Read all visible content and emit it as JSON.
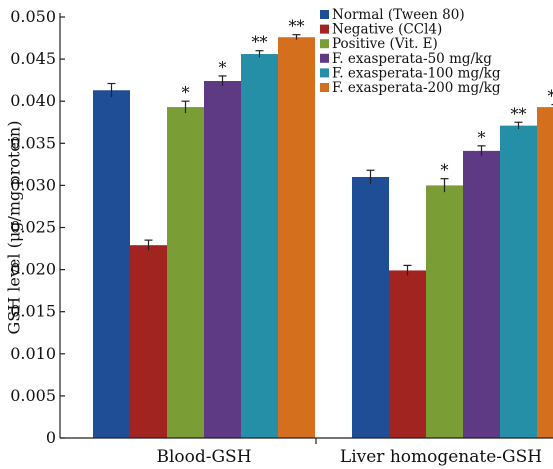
{
  "chart_data": {
    "type": "bar",
    "ylabel": "GSH level (μg/mg protein)",
    "ylim": [
      0,
      0.05
    ],
    "yticks": [
      "0",
      "0.005",
      "0.010",
      "0.015",
      "0.020",
      "0.025",
      "0.030",
      "0.035",
      "0.040",
      "0.045",
      "0.050"
    ],
    "categories": [
      "Blood-GSH",
      "Liver homogenate-GSH"
    ],
    "legend_position": "top-right",
    "series": [
      {
        "name": "Normal (Tween 80)",
        "color": "#1F4E96",
        "values": [
          0.0413,
          0.031
        ],
        "errors": [
          0.0008,
          0.0008
        ],
        "annotations": [
          "",
          ""
        ]
      },
      {
        "name": "Negative (CCl4)",
        "color": "#A12421",
        "values": [
          0.0229,
          0.0199
        ],
        "errors": [
          0.0006,
          0.0006
        ],
        "annotations": [
          "",
          ""
        ]
      },
      {
        "name": "Positive (Vit. E)",
        "color": "#7A9E35",
        "values": [
          0.0393,
          0.03
        ],
        "errors": [
          0.0007,
          0.0008
        ],
        "annotations": [
          "*",
          "*"
        ]
      },
      {
        "name": "F. exasperata-50 mg/kg",
        "color": "#5E3984",
        "values": [
          0.0424,
          0.0341
        ],
        "errors": [
          0.0006,
          0.0006
        ],
        "annotations": [
          "*",
          "*"
        ]
      },
      {
        "name": "F. exasperata-100 mg/kg",
        "color": "#258FA7",
        "values": [
          0.0456,
          0.0371
        ],
        "errors": [
          0.0004,
          0.0004
        ],
        "annotations": [
          "**",
          "**"
        ]
      },
      {
        "name": "F. exasperata-200 mg/kg",
        "color": "#D4701D",
        "values": [
          0.0476,
          0.0393
        ],
        "errors": [
          0.0003,
          0.0003
        ],
        "annotations": [
          "**",
          "**"
        ]
      }
    ]
  }
}
